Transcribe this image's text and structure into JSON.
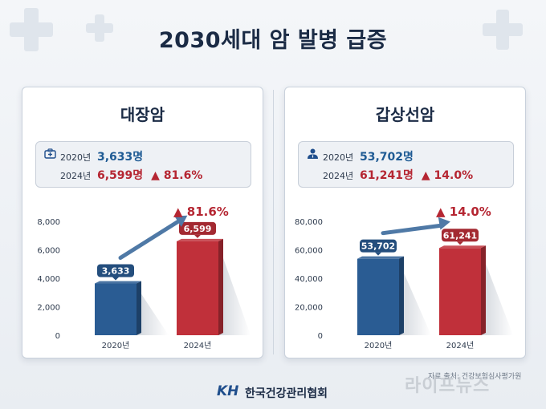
{
  "title": "2030세대 암 발병 급증",
  "cards": [
    {
      "name": "대장암",
      "icon": "briefcase-medical-icon",
      "info": {
        "y2020": "2020년",
        "v2020": "3,633명",
        "y2024": "2024년",
        "v2024": "6,599명",
        "change": "▲ 81.6%"
      }
    },
    {
      "name": "갑상선암",
      "icon": "doctor-icon",
      "info": {
        "y2020": "2020년",
        "v2020": "53,702명",
        "y2024": "2024년",
        "v2024": "61,241명",
        "change": "▲ 14.0%"
      }
    }
  ],
  "chart_data": [
    {
      "type": "bar",
      "title": "대장암",
      "categories": [
        "2020년",
        "2024년"
      ],
      "values": [
        3633,
        6599
      ],
      "value_labels": [
        "3,633",
        "6,599"
      ],
      "change_label": "▲ 81.6%",
      "yticks": [
        0,
        2000,
        4000,
        6000,
        8000
      ],
      "ytick_labels": [
        "0",
        "2,000",
        "4,000",
        "6,000",
        "8,000"
      ],
      "ylim": [
        0,
        8000
      ],
      "colors": [
        "#2a5c93",
        "#c0303a"
      ],
      "grid": false
    },
    {
      "type": "bar",
      "title": "갑상선암",
      "categories": [
        "2020년",
        "2024년"
      ],
      "values": [
        53702,
        61241
      ],
      "value_labels": [
        "53,702",
        "61,241"
      ],
      "change_label": "▲ 14.0%",
      "yticks": [
        0,
        20000,
        40000,
        60000,
        80000
      ],
      "ytick_labels": [
        "0",
        "20,000",
        "40,000",
        "60,000",
        "80,000"
      ],
      "ylim": [
        0,
        80000
      ],
      "colors": [
        "#2a5c93",
        "#c0303a"
      ],
      "grid": false
    }
  ],
  "footer": {
    "logo": "KH",
    "org": "한국건강관리협회"
  },
  "source": "자료 출처: 건강보험심사평가원",
  "watermark": "라이프뉴스",
  "colors": {
    "blue": "#2a5c93",
    "red": "#c0303a",
    "navy": "#1b2b45"
  }
}
